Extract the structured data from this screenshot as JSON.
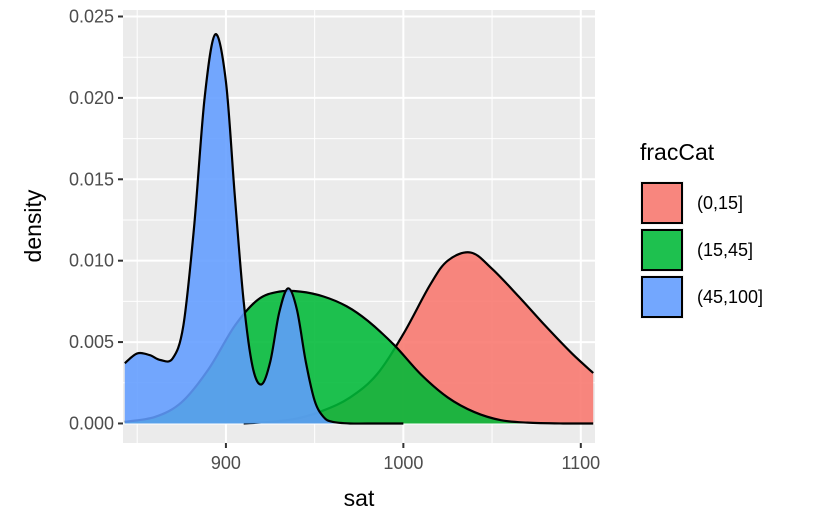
{
  "chart_data": {
    "type": "area",
    "xlabel": "sat",
    "ylabel": "density",
    "xlim": [
      842,
      1108
    ],
    "ylim": [
      -0.0012,
      0.0254
    ],
    "x_ticks": [
      900,
      1000,
      1100
    ],
    "x_tick_labels": [
      "900",
      "1000",
      "1100"
    ],
    "y_ticks": [
      0,
      0.005,
      0.01,
      0.015,
      0.02,
      0.025
    ],
    "y_tick_labels": [
      "0.000",
      "0.005",
      "0.010",
      "0.015",
      "0.020",
      "0.025"
    ],
    "grid": true,
    "legend": {
      "title": "fracCat",
      "placement": "right",
      "items": [
        "(0,15]",
        "(15,45]",
        "(45,100]"
      ]
    },
    "series": [
      {
        "name": "(0,15]",
        "color": "#F8766D",
        "x": [
          910,
          925,
          940,
          955,
          970,
          985,
          1000,
          1015,
          1025,
          1038,
          1050,
          1065,
          1080,
          1095,
          1107
        ],
        "y": [
          0.0,
          0.0001,
          0.0003,
          0.0008,
          0.0016,
          0.003,
          0.0055,
          0.0085,
          0.01,
          0.0105,
          0.0095,
          0.0078,
          0.006,
          0.0043,
          0.0031
        ]
      },
      {
        "name": "(15,45]",
        "color": "#00BA38",
        "x": [
          843,
          860,
          875,
          890,
          905,
          918,
          930,
          942,
          955,
          968,
          980,
          995,
          1010,
          1025,
          1040,
          1055,
          1070,
          1090,
          1107
        ],
        "y": [
          0.0001,
          0.0004,
          0.0013,
          0.0033,
          0.006,
          0.0076,
          0.0081,
          0.0081,
          0.0078,
          0.0072,
          0.0063,
          0.0048,
          0.003,
          0.0016,
          0.0007,
          0.0002,
          5e-05,
          0.0,
          0.0
        ]
      },
      {
        "name": "(45,100]",
        "color": "#619CFF",
        "x": [
          843,
          850,
          857,
          863,
          870,
          876,
          882,
          888,
          894,
          900,
          905,
          910,
          915,
          920,
          925,
          930,
          935,
          940,
          945,
          950,
          955,
          960,
          970,
          985,
          1000
        ],
        "y": [
          0.0037,
          0.0043,
          0.0042,
          0.0039,
          0.004,
          0.006,
          0.012,
          0.02,
          0.0239,
          0.021,
          0.014,
          0.0075,
          0.0035,
          0.0024,
          0.0038,
          0.0068,
          0.0083,
          0.007,
          0.0038,
          0.0014,
          0.0004,
          0.0001,
          0.0,
          0.0,
          0.0
        ]
      }
    ]
  }
}
